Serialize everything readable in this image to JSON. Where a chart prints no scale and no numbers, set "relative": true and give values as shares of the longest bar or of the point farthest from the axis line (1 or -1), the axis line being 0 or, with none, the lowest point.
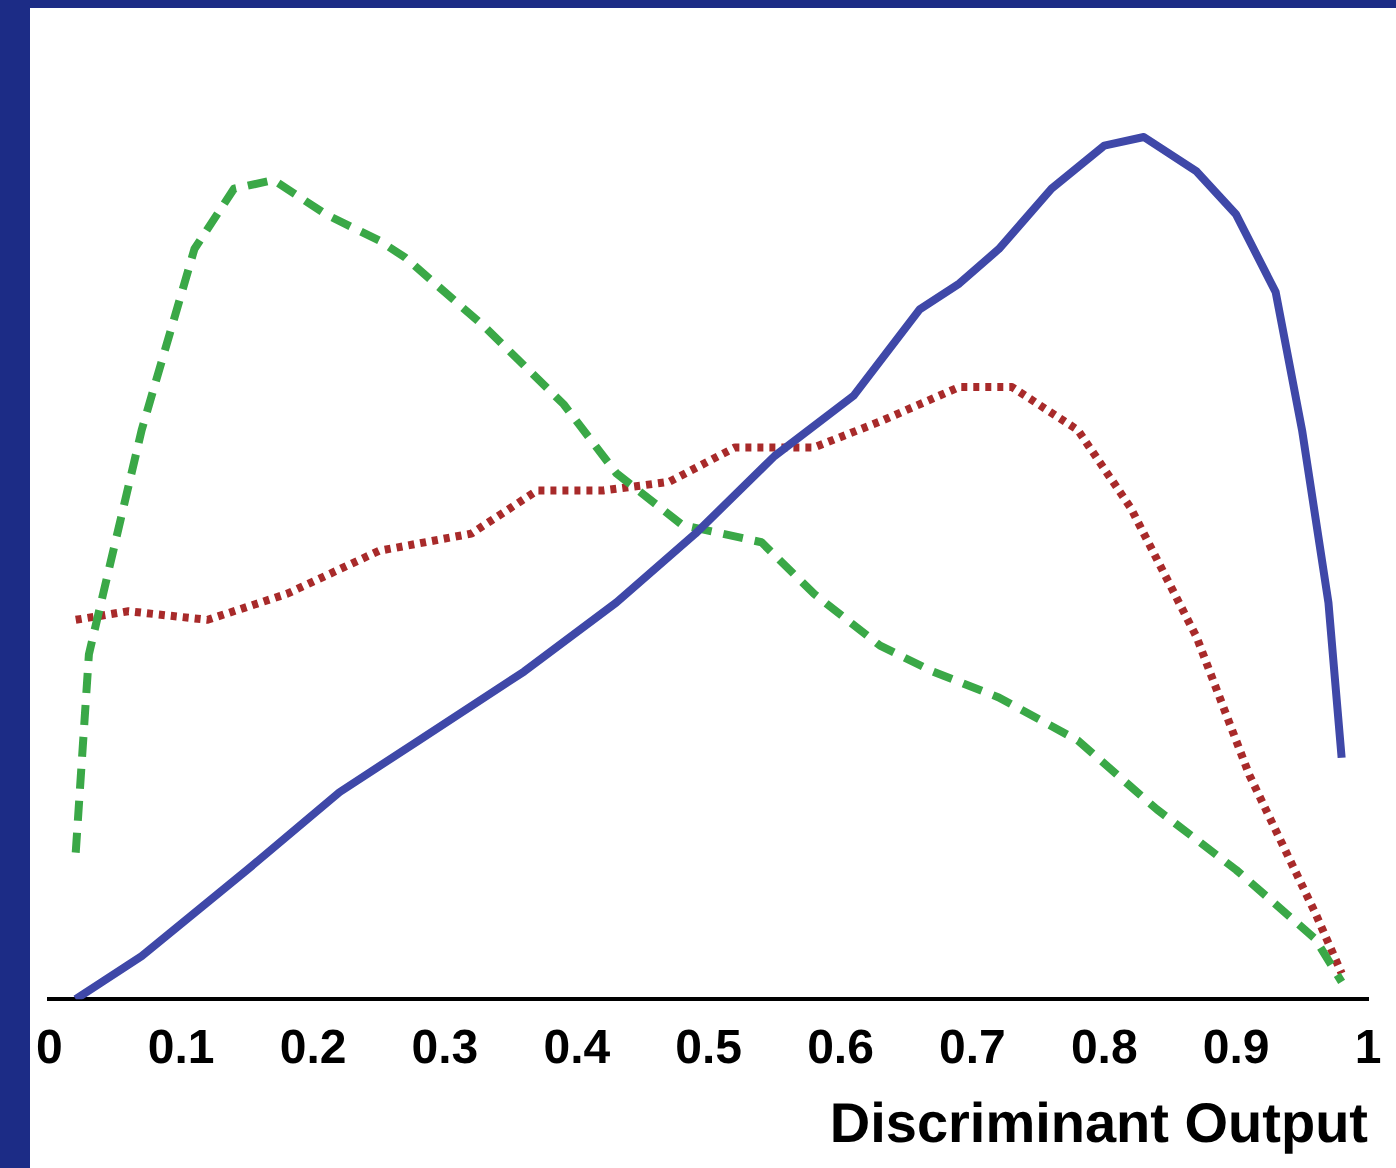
{
  "chart_data": {
    "type": "line",
    "xlabel": "Discriminant Output",
    "relative": true,
    "xlim": [
      0,
      1
    ],
    "xticks": [
      0,
      0.1,
      0.2,
      0.3,
      0.4,
      0.5,
      0.6,
      0.7,
      0.8,
      0.9,
      1
    ],
    "tick_labels": "x",
    "grid": false,
    "marker": "none",
    "series": [
      {
        "color": "#3f48a8",
        "line_style": "solid",
        "x": [
          0.02,
          0.07,
          0.15,
          0.22,
          0.28,
          0.36,
          0.43,
          0.49,
          0.55,
          0.61,
          0.66,
          0.69,
          0.72,
          0.76,
          0.8,
          0.83,
          0.87,
          0.9,
          0.93,
          0.95,
          0.97,
          0.98
        ],
        "values": [
          0,
          0.05,
          0.15,
          0.24,
          0.3,
          0.38,
          0.46,
          0.54,
          0.63,
          0.7,
          0.8,
          0.83,
          0.87,
          0.94,
          0.99,
          1,
          0.96,
          0.91,
          0.82,
          0.66,
          0.46,
          0.28
        ]
      },
      {
        "color": "#3aa847",
        "line_style": "dashed",
        "x": [
          0.02,
          0.03,
          0.07,
          0.11,
          0.14,
          0.17,
          0.21,
          0.25,
          0.27,
          0.33,
          0.39,
          0.43,
          0.48,
          0.54,
          0.58,
          0.63,
          0.67,
          0.72,
          0.78,
          0.84,
          0.9,
          0.96,
          0.98
        ],
        "values": [
          0.17,
          0.4,
          0.66,
          0.87,
          0.94,
          0.95,
          0.91,
          0.88,
          0.86,
          0.78,
          0.69,
          0.61,
          0.55,
          0.53,
          0.47,
          0.41,
          0.38,
          0.35,
          0.3,
          0.22,
          0.15,
          0.07,
          0.02
        ]
      },
      {
        "color": "#a82a2a",
        "line_style": "dotted",
        "x": [
          0.02,
          0.06,
          0.12,
          0.18,
          0.25,
          0.32,
          0.37,
          0.42,
          0.47,
          0.52,
          0.58,
          0.63,
          0.69,
          0.73,
          0.78,
          0.82,
          0.87,
          0.91,
          0.96,
          0.98
        ],
        "values": [
          0.44,
          0.45,
          0.44,
          0.47,
          0.52,
          0.54,
          0.59,
          0.59,
          0.6,
          0.64,
          0.64,
          0.67,
          0.71,
          0.71,
          0.66,
          0.57,
          0.42,
          0.26,
          0.1,
          0.03
        ]
      }
    ]
  }
}
